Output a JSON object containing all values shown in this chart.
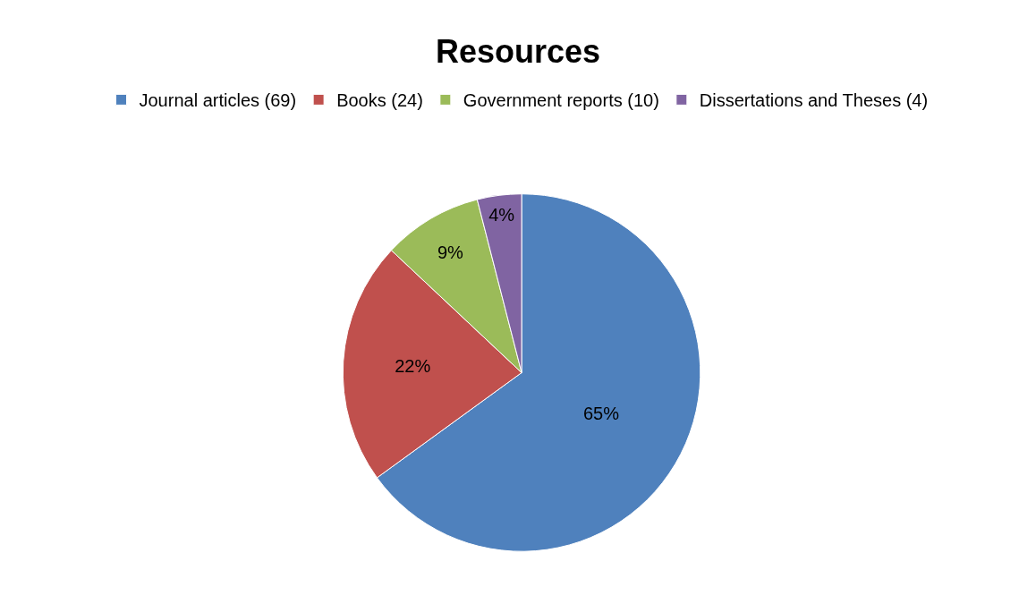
{
  "chart_data": {
    "type": "pie",
    "title": "Resources",
    "categories": [
      "Journal articles (69)",
      "Books (24)",
      "Government reports (10)",
      "Dissertations and Theses (4)"
    ],
    "values": [
      65,
      22,
      9,
      4
    ],
    "colors": [
      "#4f81bd",
      "#c0504d",
      "#9bbb59",
      "#8064a2"
    ],
    "value_labels": [
      "65%",
      "22%",
      "9%",
      "4%"
    ],
    "legend": "top"
  }
}
